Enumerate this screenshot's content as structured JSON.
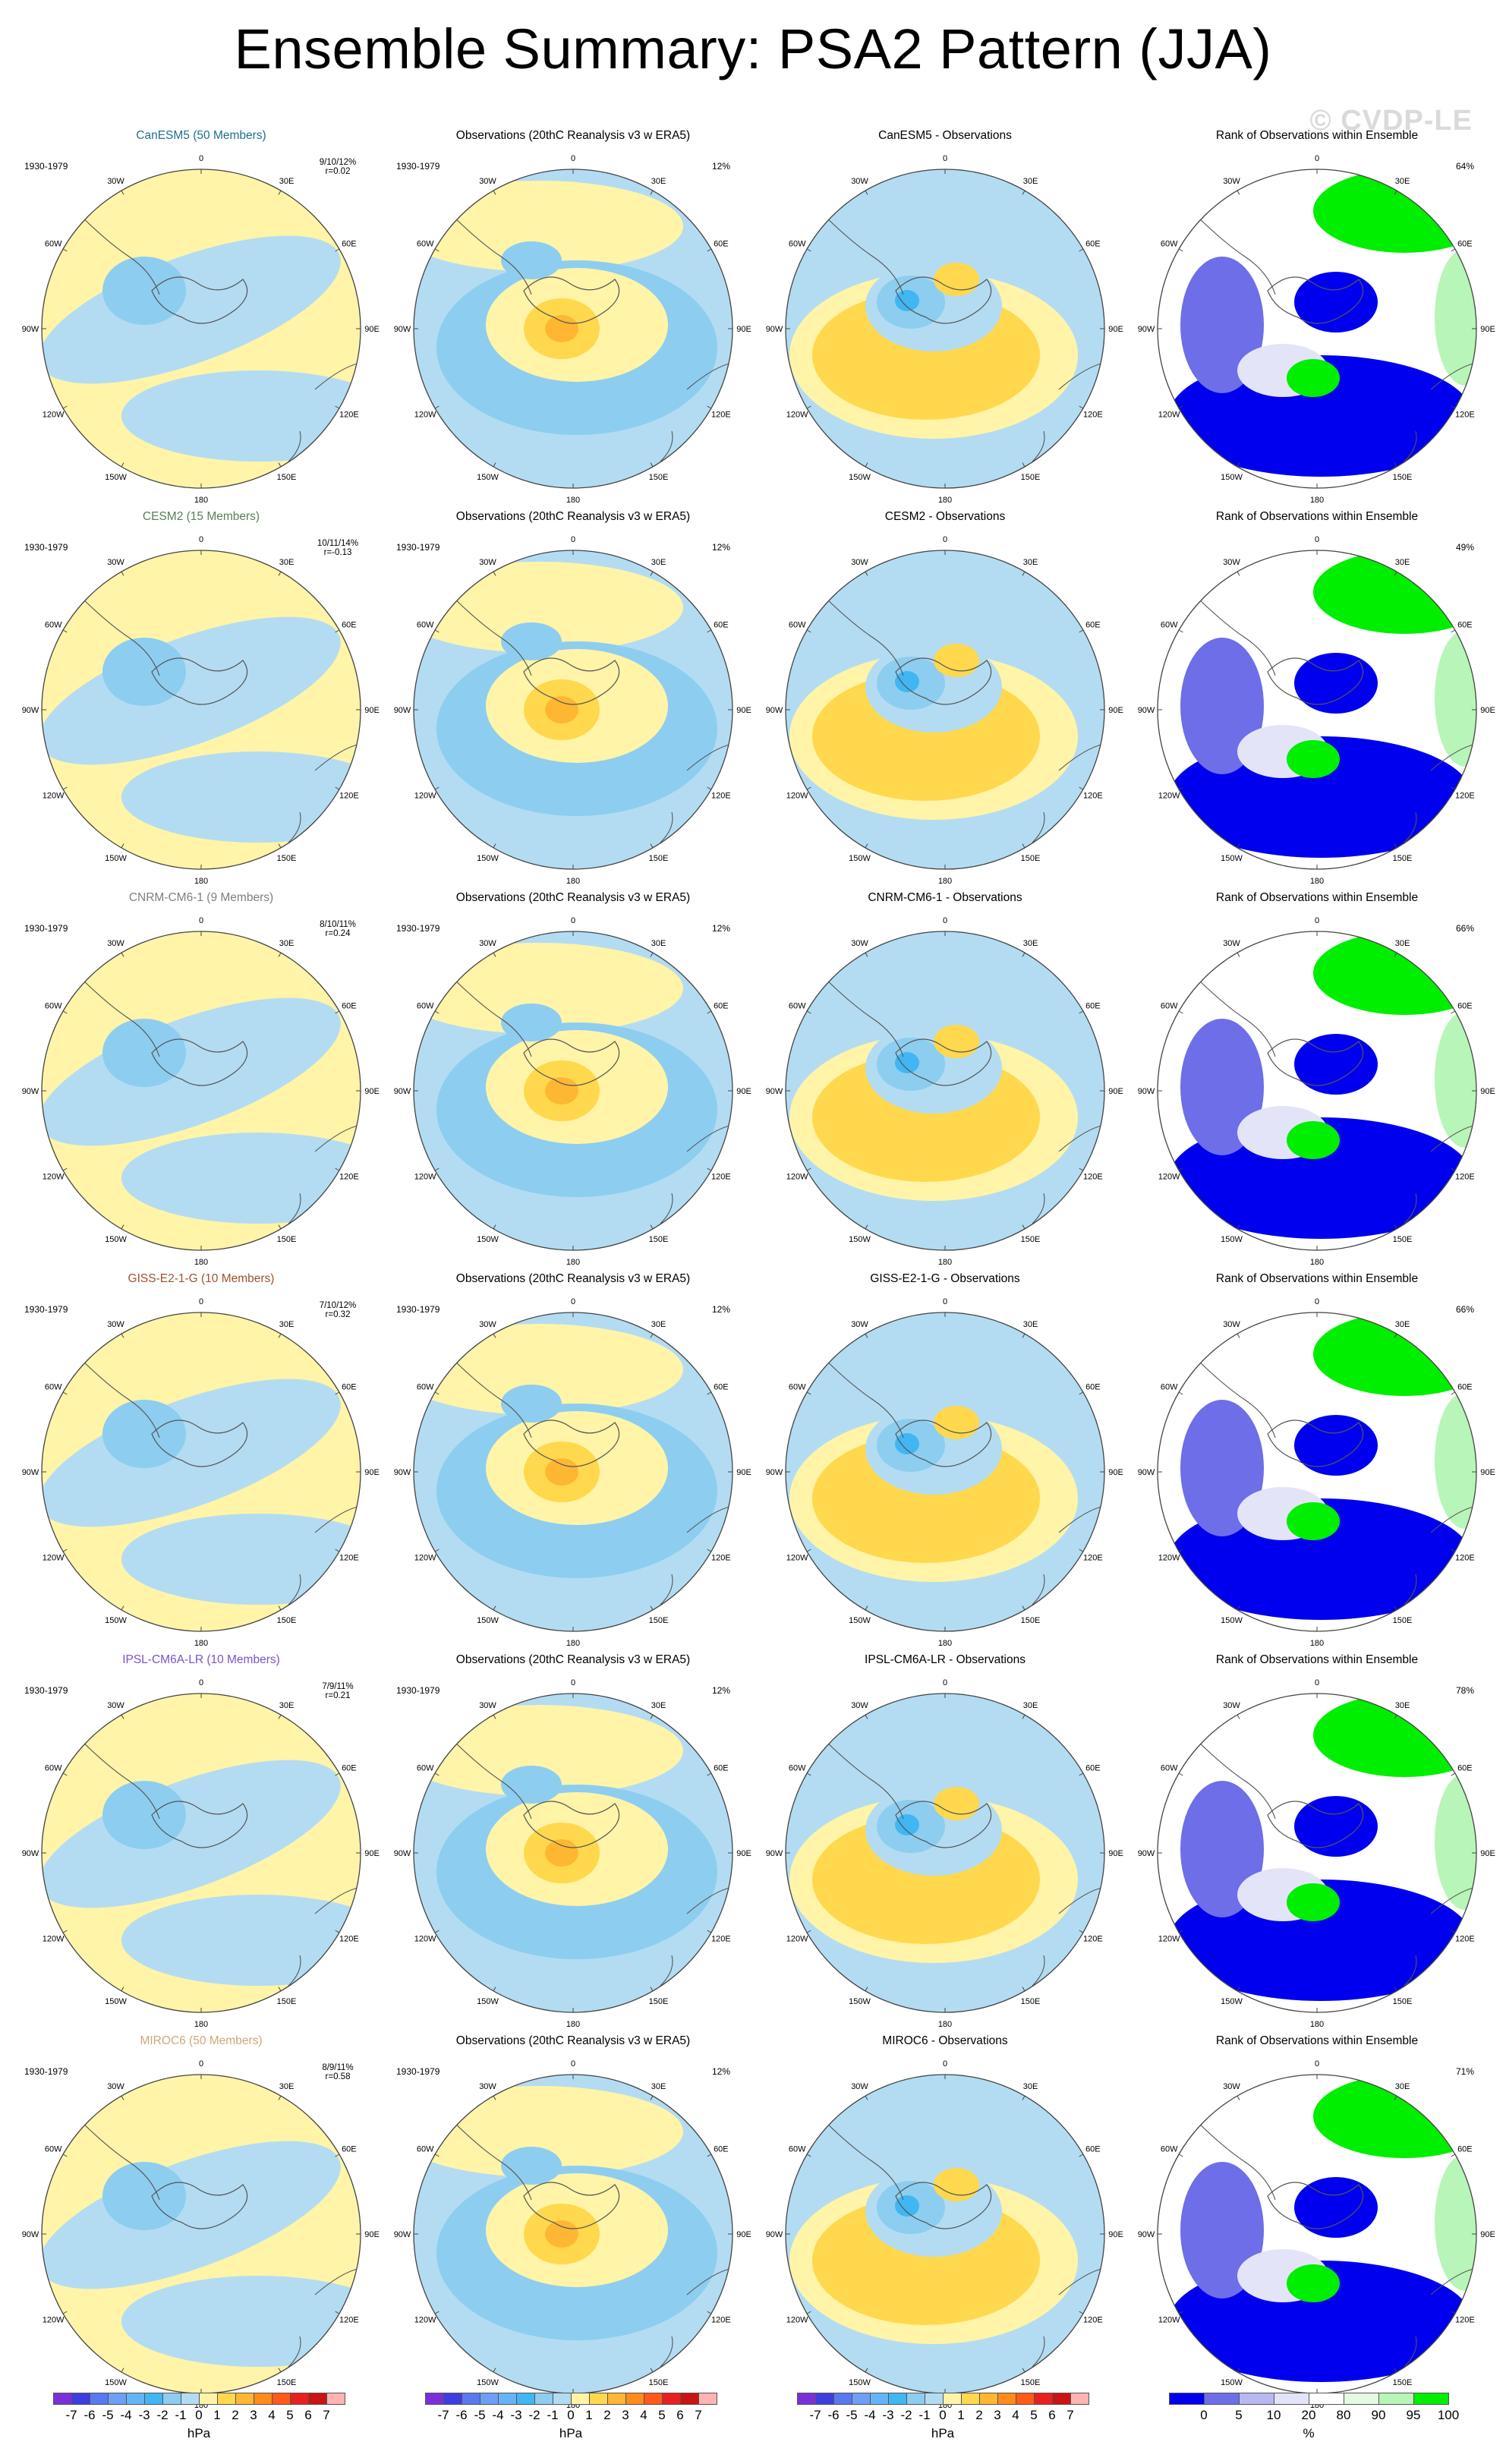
{
  "title": "Ensemble Summary: PSA2 Pattern (JJA)",
  "watermark": "© CVDP-LE",
  "rows": [
    {
      "model": "CanESM5 (50 Members)",
      "color": "#1f6f8f",
      "model_diff_title": "CanESM5 - Observations",
      "stat_line1": "9/10/12%",
      "stat_line2": "r=0.02",
      "rank_pct": "64%"
    },
    {
      "model": "CESM2 (15 Members)",
      "color": "#5a7e5a",
      "model_diff_title": "CESM2 - Observations",
      "stat_line1": "10/11/14%",
      "stat_line2": "r=-0.13",
      "rank_pct": "49%"
    },
    {
      "model": "CNRM-CM6-1 (9 Members)",
      "color": "#7f7f7f",
      "model_diff_title": "CNRM-CM6-1 - Observations",
      "stat_line1": "8/10/11%",
      "stat_line2": "r=0.24",
      "rank_pct": "66%"
    },
    {
      "model": "GISS-E2-1-G (10 Members)",
      "color": "#a0522d",
      "model_diff_title": "GISS-E2-1-G - Observations",
      "stat_line1": "7/10/12%",
      "stat_line2": "r=0.32",
      "rank_pct": "66%"
    },
    {
      "model": "IPSL-CM6A-LR (10 Members)",
      "color": "#7b52c7",
      "model_diff_title": "IPSL-CM6A-LR - Observations",
      "stat_line1": "7/9/11%",
      "stat_line2": "r=0.21",
      "rank_pct": "78%"
    },
    {
      "model": "MIROC6 (50 Members)",
      "color": "#d2a679",
      "model_diff_title": "MIROC6 - Observations",
      "stat_line1": "8/9/11%",
      "stat_line2": "r=0.58",
      "rank_pct": "71%"
    }
  ],
  "obs_title": "Observations (20thC Reanalysis v3 w ERA5)",
  "obs_pct": "12%",
  "rank_title": "Rank of Observations within Ensemble",
  "period": "1930-1979",
  "lon_labels": [
    "0",
    "30E",
    "60E",
    "90E",
    "120E",
    "150E",
    "180",
    "150W",
    "120W",
    "90W",
    "60W",
    "30W"
  ],
  "colorbar_hpa": {
    "labels": [
      "-7",
      "-6",
      "-5",
      "-4",
      "-3",
      "-2",
      "-1",
      "0",
      "1",
      "2",
      "3",
      "4",
      "5",
      "6",
      "7"
    ],
    "colors": [
      "#7b2fd8",
      "#3d3de0",
      "#5a78f0",
      "#6f9ef5",
      "#64b5f6",
      "#41b6f2",
      "#8dcdf0",
      "#b3dcf2",
      "#fff4a8",
      "#ffd84d",
      "#ffb733",
      "#ff8c1a",
      "#ff5a1a",
      "#e82020",
      "#c81414",
      "#ffb3b3"
    ],
    "unit": "hPa"
  },
  "colorbar_rank": {
    "labels": [
      "0",
      "5",
      "10",
      "20",
      "80",
      "90",
      "95",
      "100"
    ],
    "colors": [
      "#0000ee",
      "#6e6ee8",
      "#b8b8f0",
      "#e4e4f8",
      "#ffffff",
      "#e4fae4",
      "#b8f5b8",
      "#00ee00"
    ],
    "unit": "%"
  },
  "chart_data": [
    {
      "type": "heatmap",
      "panel": "model ensemble-mean PSA2 pattern (JJA), polar stereographic, 6 models",
      "units": "hPa",
      "levels": [
        -7,
        -6,
        -5,
        -4,
        -3,
        -2,
        -1,
        0,
        1,
        2,
        3,
        4,
        5,
        6,
        7
      ]
    },
    {
      "type": "heatmap",
      "panel": "Observations (20thC Reanalysis v3 w ERA5)",
      "units": "hPa",
      "levels": [
        -7,
        -6,
        -5,
        -4,
        -3,
        -2,
        -1,
        0,
        1,
        2,
        3,
        4,
        5,
        6,
        7
      ]
    },
    {
      "type": "heatmap",
      "panel": "model - observations difference",
      "units": "hPa",
      "levels": [
        -7,
        -6,
        -5,
        -4,
        -3,
        -2,
        -1,
        0,
        1,
        2,
        3,
        4,
        5,
        6,
        7
      ]
    },
    {
      "type": "heatmap",
      "panel": "Rank of Observations within Ensemble",
      "units": "%",
      "levels": [
        0,
        5,
        10,
        20,
        80,
        90,
        95,
        100
      ]
    }
  ]
}
